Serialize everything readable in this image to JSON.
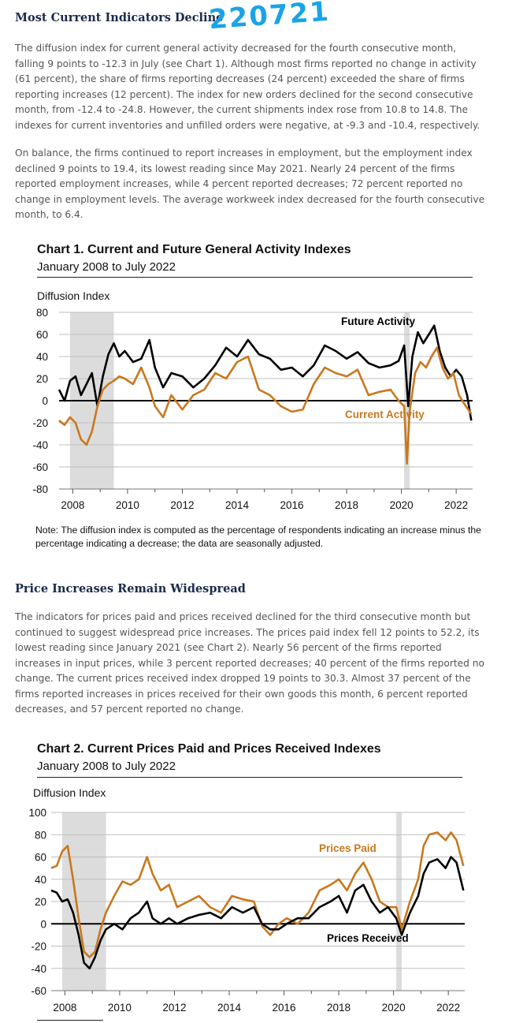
{
  "section1": {
    "heading": "Most Current Indicators Decline",
    "annotation": "220721",
    "para1": "The diffusion index for current general activity decreased for the fourth consecutive month, falling 9 points to -12.3 in July (see Chart 1). Although most firms reported no change in activity (61 percent), the share of firms reporting decreases (24 percent) exceeded the share of firms reporting increases (12 percent). The index for new orders declined for the second consecutive month, from -12.4 to -24.8. However, the current shipments index rose from 10.8 to 14.8. The indexes for current inventories and unfilled orders were negative, at -9.3 and -10.4, respectively.",
    "para2": "On balance, the firms continued to report increases in employment, but the employment index declined 9 points to 19.4, its lowest reading since May 2021. Nearly 24 percent of the firms reported employment increases, while 4 percent reported decreases; 72 percent reported no change in employment levels. The average workweek index decreased for the fourth consecutive month, to 6.4."
  },
  "chart1": {
    "title": "Chart 1. Current and Future General Activity Indexes",
    "subtitle": "January 2008 to July 2022",
    "note": "Note: The diffusion index is computed as the percentage of respondents indicating an increase minus the percentage indicating a decrease; the data are seasonally adjusted."
  },
  "section2": {
    "heading": "Price Increases Remain Widespread",
    "para": "The indicators for prices paid and prices received declined for the third consecutive month but continued to suggest widespread price increases. The prices paid index fell 12 points to 52.2, its lowest reading since January 2021 (see Chart 2). Nearly 56 percent of the firms reported increases in input prices, while 3 percent reported decreases; 40 percent of the firms reported no change. The current prices received index dropped 19 points to 30.3. Almost 37 percent of the firms reported increases in prices received for their own goods this month, 6 percent reported decreases, and 57 percent reported no change."
  },
  "chart2": {
    "title": "Chart 2. Current Prices Paid and Prices Received Indexes",
    "subtitle": "January 2008 to July 2022"
  },
  "colors": {
    "orange": "#c8781e",
    "black": "#000000",
    "shade": "#dcdcdc",
    "heading": "#1a2a4a",
    "annotation": "#1aa3e8"
  },
  "chart_data": [
    {
      "type": "line",
      "title": "Chart 1. Current and Future General Activity Indexes",
      "subtitle": "January 2008 to July 2022",
      "ylabel": "Diffusion Index",
      "ylim": [
        -80,
        80
      ],
      "yticks": [
        80,
        60,
        40,
        20,
        0,
        -20,
        -40,
        -60,
        -80
      ],
      "xlim": [
        2007.5,
        2022.6
      ],
      "xticks": [
        2008,
        2010,
        2012,
        2014,
        2016,
        2018,
        2020,
        2022
      ],
      "shaded_periods": [
        [
          2007.9,
          2009.5
        ],
        [
          2020.1,
          2020.3
        ]
      ],
      "grid": true,
      "series": [
        {
          "name": "Future Activity",
          "color": "#000000",
          "x": [
            2007.5,
            2007.7,
            2007.9,
            2008.1,
            2008.3,
            2008.5,
            2008.7,
            2008.9,
            2009.1,
            2009.3,
            2009.5,
            2009.7,
            2009.9,
            2010.2,
            2010.5,
            2010.8,
            2011.0,
            2011.3,
            2011.6,
            2012.0,
            2012.4,
            2012.8,
            2013.2,
            2013.6,
            2014.0,
            2014.4,
            2014.8,
            2015.2,
            2015.6,
            2016.0,
            2016.4,
            2016.8,
            2017.2,
            2017.6,
            2018.0,
            2018.4,
            2018.8,
            2019.2,
            2019.6,
            2019.9,
            2020.1,
            2020.25,
            2020.4,
            2020.6,
            2020.8,
            2021.0,
            2021.2,
            2021.4,
            2021.6,
            2021.8,
            2022.0,
            2022.2,
            2022.4,
            2022.55
          ],
          "y": [
            10,
            0,
            18,
            22,
            5,
            15,
            25,
            -5,
            22,
            42,
            52,
            40,
            45,
            35,
            38,
            55,
            30,
            12,
            25,
            22,
            12,
            20,
            32,
            48,
            40,
            55,
            42,
            38,
            28,
            30,
            22,
            32,
            50,
            45,
            38,
            44,
            34,
            30,
            32,
            36,
            50,
            -5,
            40,
            62,
            52,
            60,
            68,
            45,
            30,
            22,
            28,
            22,
            5,
            -18
          ]
        },
        {
          "name": "Current Activity",
          "color": "#c8781e",
          "x": [
            2007.5,
            2007.7,
            2007.9,
            2008.1,
            2008.3,
            2008.5,
            2008.7,
            2008.9,
            2009.1,
            2009.3,
            2009.5,
            2009.7,
            2009.9,
            2010.2,
            2010.5,
            2010.8,
            2011.0,
            2011.3,
            2011.6,
            2012.0,
            2012.4,
            2012.8,
            2013.2,
            2013.6,
            2014.0,
            2014.4,
            2014.8,
            2015.2,
            2015.6,
            2016.0,
            2016.4,
            2016.8,
            2017.2,
            2017.6,
            2018.0,
            2018.4,
            2018.8,
            2019.2,
            2019.6,
            2019.9,
            2020.1,
            2020.2,
            2020.3,
            2020.5,
            2020.7,
            2020.9,
            2021.1,
            2021.3,
            2021.5,
            2021.7,
            2021.9,
            2022.1,
            2022.3,
            2022.55
          ],
          "y": [
            -18,
            -22,
            -15,
            -20,
            -35,
            -40,
            -28,
            -5,
            10,
            15,
            18,
            22,
            20,
            15,
            30,
            12,
            -5,
            -15,
            5,
            -8,
            5,
            10,
            25,
            20,
            35,
            40,
            10,
            5,
            -5,
            -10,
            -8,
            15,
            30,
            25,
            22,
            28,
            5,
            8,
            10,
            0,
            -5,
            -57,
            -10,
            25,
            35,
            30,
            40,
            48,
            30,
            20,
            25,
            5,
            -3,
            -12
          ]
        }
      ],
      "annotations": [
        "Future Activity",
        "Current Activity"
      ]
    },
    {
      "type": "line",
      "title": "Chart 2. Current Prices Paid and Prices Received Indexes",
      "subtitle": "January 2008 to July 2022",
      "ylabel": "Diffusion Index",
      "ylim": [
        -60,
        100
      ],
      "yticks": [
        100,
        80,
        60,
        40,
        20,
        0,
        -20,
        -40,
        -60
      ],
      "xlim": [
        2007.5,
        2022.6
      ],
      "xticks": [
        2008,
        2010,
        2012,
        2014,
        2016,
        2018,
        2020,
        2022
      ],
      "shaded_periods": [
        [
          2007.9,
          2009.5
        ],
        [
          2020.1,
          2020.3
        ]
      ],
      "grid": true,
      "series": [
        {
          "name": "Prices Paid",
          "color": "#c8781e",
          "x": [
            2007.5,
            2007.7,
            2007.9,
            2008.1,
            2008.3,
            2008.5,
            2008.7,
            2008.9,
            2009.1,
            2009.3,
            2009.5,
            2009.8,
            2010.1,
            2010.4,
            2010.7,
            2011.0,
            2011.2,
            2011.5,
            2011.8,
            2012.1,
            2012.5,
            2012.9,
            2013.3,
            2013.7,
            2014.1,
            2014.5,
            2014.9,
            2015.2,
            2015.5,
            2015.8,
            2016.1,
            2016.5,
            2016.9,
            2017.3,
            2017.7,
            2018.0,
            2018.3,
            2018.6,
            2018.9,
            2019.2,
            2019.5,
            2019.8,
            2020.1,
            2020.3,
            2020.6,
            2020.9,
            2021.1,
            2021.3,
            2021.6,
            2021.9,
            2022.1,
            2022.3,
            2022.55
          ],
          "y": [
            50,
            52,
            65,
            70,
            40,
            5,
            -25,
            -30,
            -25,
            -5,
            10,
            25,
            38,
            35,
            40,
            60,
            45,
            30,
            35,
            15,
            20,
            25,
            15,
            10,
            25,
            22,
            20,
            -2,
            -10,
            0,
            5,
            0,
            10,
            30,
            35,
            40,
            30,
            45,
            55,
            40,
            20,
            15,
            15,
            -5,
            20,
            40,
            70,
            80,
            82,
            75,
            82,
            75,
            52
          ]
        },
        {
          "name": "Prices Received",
          "color": "#000000",
          "x": [
            2007.5,
            2007.7,
            2007.9,
            2008.1,
            2008.3,
            2008.5,
            2008.7,
            2008.9,
            2009.1,
            2009.3,
            2009.5,
            2009.8,
            2010.1,
            2010.4,
            2010.7,
            2011.0,
            2011.2,
            2011.5,
            2011.8,
            2012.1,
            2012.5,
            2012.9,
            2013.3,
            2013.7,
            2014.1,
            2014.5,
            2014.9,
            2015.2,
            2015.5,
            2015.8,
            2016.1,
            2016.5,
            2016.9,
            2017.3,
            2017.7,
            2018.0,
            2018.3,
            2018.6,
            2018.9,
            2019.2,
            2019.5,
            2019.8,
            2020.1,
            2020.3,
            2020.6,
            2020.9,
            2021.1,
            2021.3,
            2021.6,
            2021.9,
            2022.1,
            2022.3,
            2022.55
          ],
          "y": [
            30,
            28,
            20,
            22,
            10,
            -10,
            -35,
            -40,
            -30,
            -15,
            -5,
            0,
            -5,
            5,
            10,
            20,
            5,
            0,
            5,
            0,
            5,
            8,
            10,
            5,
            15,
            10,
            15,
            0,
            -5,
            -5,
            0,
            5,
            5,
            15,
            20,
            25,
            10,
            30,
            35,
            20,
            10,
            15,
            5,
            -10,
            10,
            25,
            45,
            55,
            58,
            50,
            60,
            55,
            30
          ]
        }
      ],
      "annotations": [
        "Prices Paid",
        "Prices Received"
      ]
    }
  ]
}
